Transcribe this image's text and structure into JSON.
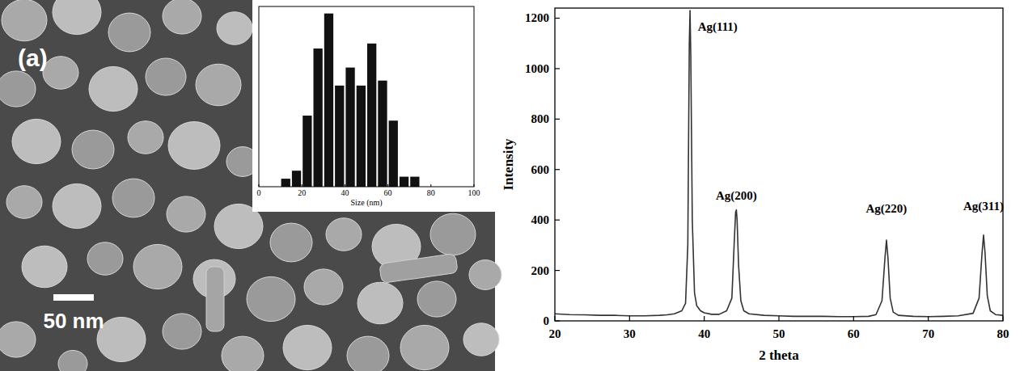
{
  "figure": {
    "panel_label": "(a)",
    "scale_bar": "50 nm"
  },
  "chart_data": [
    {
      "type": "histogram",
      "x_label": "Size (nm)",
      "bins": [
        10,
        15,
        20,
        25,
        30,
        35,
        40,
        45,
        50,
        55,
        60,
        65,
        70,
        75
      ],
      "counts": [
        8,
        16,
        71,
        138,
        173,
        101,
        119,
        101,
        143,
        106,
        66,
        10,
        10
      ],
      "xlim": [
        0,
        100
      ],
      "xticks": [
        0,
        20,
        40,
        60,
        80,
        100
      ],
      "ylim": [
        0,
        180
      ],
      "tick_labels": "x",
      "color": "#111111"
    },
    {
      "type": "line",
      "x_label": "2 theta",
      "y_label": "Intensity",
      "x": [
        20,
        22,
        24,
        26,
        28,
        30,
        32,
        34,
        35,
        36,
        37,
        37.5,
        37.8,
        38,
        38.1,
        38.2,
        38.4,
        38.7,
        39,
        39.5,
        40,
        41,
        42,
        43,
        43.7,
        44,
        44.2,
        44.3,
        44.4,
        44.6,
        44.9,
        45.3,
        46,
        48,
        50,
        52,
        54,
        56,
        58,
        60,
        62,
        63,
        63.8,
        64.2,
        64.4,
        64.6,
        64.9,
        65.3,
        66,
        68,
        70,
        72,
        74,
        76,
        76.8,
        77.2,
        77.4,
        77.6,
        77.9,
        78.3,
        79,
        80
      ],
      "values": [
        28,
        25,
        24,
        22,
        22,
        20,
        20,
        22,
        24,
        28,
        40,
        70,
        300,
        1100,
        1230,
        1050,
        400,
        110,
        60,
        40,
        32,
        26,
        26,
        40,
        90,
        300,
        430,
        440,
        400,
        220,
        80,
        40,
        28,
        22,
        20,
        18,
        18,
        18,
        17,
        17,
        18,
        25,
        80,
        250,
        320,
        250,
        90,
        35,
        22,
        18,
        17,
        18,
        20,
        30,
        90,
        270,
        340,
        270,
        100,
        40,
        25,
        22
      ],
      "xlim": [
        20,
        80
      ],
      "xticks": [
        20,
        30,
        40,
        50,
        60,
        70,
        80
      ],
      "ylim": [
        0,
        1240
      ],
      "yticks": [
        0,
        200,
        400,
        600,
        800,
        1000,
        1200
      ],
      "color": "#333333",
      "annotations": [
        {
          "text": "Ag(111)",
          "x": 41.8,
          "y": 1150
        },
        {
          "text": "Ag(200)",
          "x": 44.3,
          "y": 480
        },
        {
          "text": "Ag(220)",
          "x": 64.4,
          "y": 430
        },
        {
          "text": "Ag(311)",
          "x": 77.4,
          "y": 440
        }
      ]
    }
  ]
}
